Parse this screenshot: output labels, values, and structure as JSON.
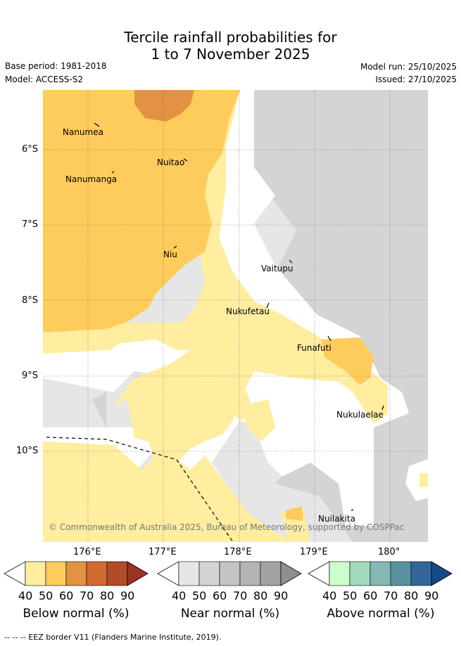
{
  "title_line1": "Tercile rainfall probabilities for",
  "title_line2": "1 to 7 November 2025",
  "base_period": "Base period: 1981-2018",
  "model": "Model: ACCESS-S2",
  "model_run": "Model run: 25/10/2025",
  "issued": "Issued: 27/10/2025",
  "copyright": "© Commonwealth of Australia 2025, Bureau of Meteorology, supported by COSPPac",
  "lon_ticks": [
    "176°E",
    "177°E",
    "178°E",
    "179°E",
    "180°"
  ],
  "lat_ticks": [
    "6°S",
    "7°S",
    "8°S",
    "9°S",
    "10°S"
  ],
  "places": [
    "Nanumea",
    "Nuitao",
    "Nanumanga",
    "Niu",
    "Vaitupu",
    "Nukufetau",
    "Funafuti",
    "Nukulaelae",
    "Nuilakita"
  ],
  "colorbars": [
    {
      "label": "Below normal (%)",
      "ticks": [
        "40",
        "50",
        "60",
        "70",
        "80",
        "90"
      ],
      "colors": [
        "#ffeda0",
        "#fecc5c",
        "#e39243",
        "#d36a32",
        "#b34a28",
        "#9b3320"
      ]
    },
    {
      "label": "Near normal (%)",
      "ticks": [
        "40",
        "50",
        "60",
        "70",
        "80",
        "90"
      ],
      "colors": [
        "#e6e6e6",
        "#d4d4d4",
        "#c4c4c4",
        "#b3b3b3",
        "#a2a2a2",
        "#8f8f8f"
      ]
    },
    {
      "label": "Above normal (%)",
      "ticks": [
        "40",
        "50",
        "60",
        "70",
        "80",
        "90"
      ],
      "colors": [
        "#ccffcc",
        "#a1d9bd",
        "#84b9b3",
        "#5a93a0",
        "#33679c",
        "#154b84"
      ]
    }
  ],
  "footer": "--  --  -- EEZ border V11 (Flanders Marine Institute, 2019).",
  "colors": {
    "below_40": "#ffeda0",
    "below_50": "#fecc5c",
    "below_60": "#e39243",
    "near_40": "#e6e6e6",
    "near_50": "#d4d4d4"
  }
}
